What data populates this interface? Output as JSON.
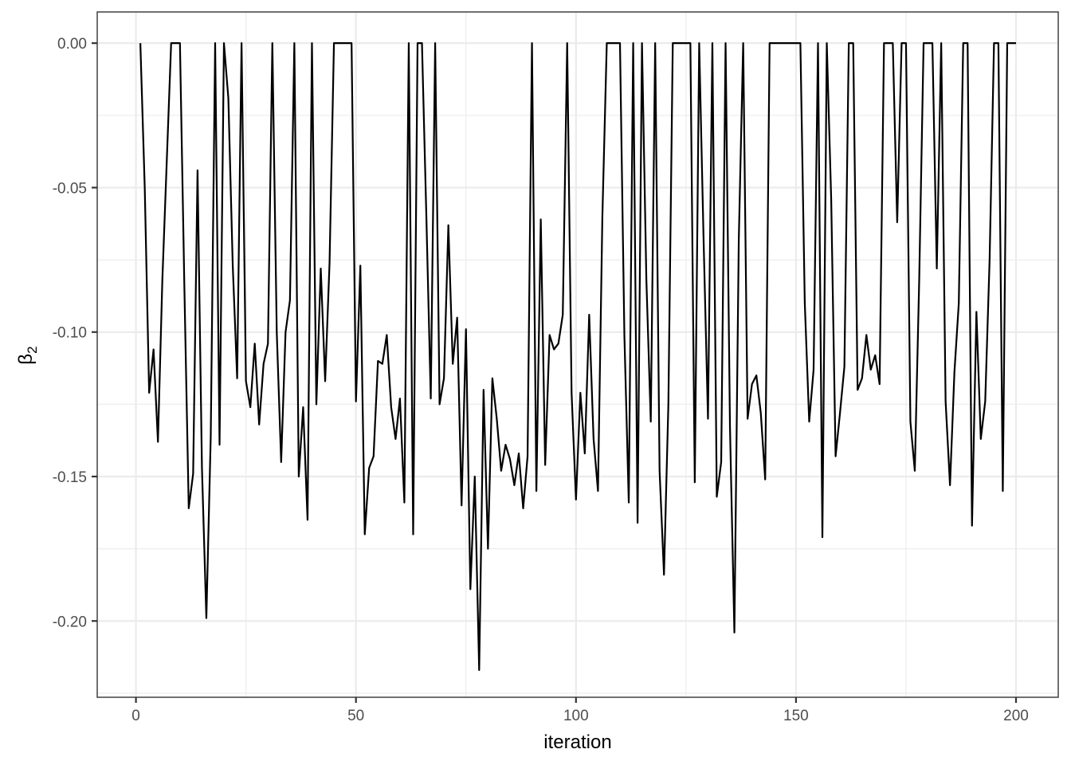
{
  "chart_data": {
    "type": "line",
    "title": "",
    "xlabel": "iteration",
    "ylabel": "β2",
    "ylabel_main": "β",
    "ylabel_sub": "2",
    "xlim": [
      -8.8,
      209.6
    ],
    "ylim": [
      -0.2264,
      0.0108
    ],
    "grid": true,
    "legend": "none",
    "x_ticks": [
      0,
      50,
      100,
      150,
      200
    ],
    "x_tick_labels": [
      "0",
      "50",
      "100",
      "150",
      "200"
    ],
    "x_minor": [
      25,
      75,
      125,
      175
    ],
    "y_ticks": [
      0.0,
      -0.05,
      -0.1,
      -0.15,
      -0.2
    ],
    "y_tick_labels": [
      "0.00",
      "-0.05",
      "-0.10",
      "-0.15",
      "-0.20"
    ],
    "y_minor": [
      -0.025,
      -0.075,
      -0.125,
      -0.175,
      -0.225
    ],
    "x_start": 1,
    "series": [
      {
        "name": "beta_2",
        "color": "#000000",
        "values": [
          0,
          -0.05,
          -0.121,
          -0.106,
          -0.138,
          -0.082,
          -0.041,
          0,
          0,
          0,
          -0.084,
          -0.161,
          -0.149,
          -0.044,
          -0.147,
          -0.199,
          -0.136,
          0,
          -0.139,
          0,
          -0.019,
          -0.077,
          -0.116,
          0,
          -0.117,
          -0.126,
          -0.104,
          -0.132,
          -0.111,
          -0.104,
          0,
          -0.1,
          -0.145,
          -0.1,
          -0.089,
          0,
          -0.15,
          -0.126,
          -0.165,
          0,
          -0.125,
          -0.078,
          -0.117,
          -0.076,
          0,
          0,
          0,
          0,
          0,
          -0.124,
          -0.077,
          -0.17,
          -0.147,
          -0.143,
          -0.11,
          -0.111,
          -0.101,
          -0.126,
          -0.137,
          -0.123,
          -0.159,
          0,
          -0.17,
          0,
          0,
          -0.06,
          -0.123,
          0,
          -0.125,
          -0.116,
          -0.063,
          -0.111,
          -0.095,
          -0.16,
          -0.099,
          -0.189,
          -0.15,
          -0.217,
          -0.12,
          -0.175,
          -0.116,
          -0.13,
          -0.148,
          -0.139,
          -0.144,
          -0.153,
          -0.142,
          -0.161,
          -0.143,
          0,
          -0.155,
          -0.061,
          -0.146,
          -0.101,
          -0.106,
          -0.104,
          -0.094,
          0,
          -0.121,
          -0.158,
          -0.121,
          -0.142,
          -0.094,
          -0.137,
          -0.155,
          -0.06,
          0,
          0,
          0,
          0,
          -0.101,
          -0.159,
          0,
          -0.166,
          0,
          -0.082,
          -0.131,
          0,
          -0.148,
          -0.184,
          -0.125,
          0,
          0,
          0,
          0,
          0,
          -0.152,
          0,
          -0.068,
          -0.13,
          0,
          -0.157,
          -0.145,
          0,
          -0.133,
          -0.204,
          -0.068,
          0,
          -0.13,
          -0.118,
          -0.115,
          -0.128,
          -0.151,
          0,
          0,
          0,
          0,
          0,
          0,
          0,
          0,
          -0.09,
          -0.131,
          -0.113,
          0,
          -0.171,
          0,
          -0.054,
          -0.143,
          -0.128,
          -0.112,
          0,
          0,
          -0.12,
          -0.116,
          -0.101,
          -0.113,
          -0.108,
          -0.118,
          0,
          0,
          0,
          -0.062,
          0,
          0,
          -0.131,
          -0.148,
          -0.082,
          0,
          0,
          0,
          -0.078,
          0,
          -0.124,
          -0.153,
          -0.114,
          -0.09,
          0,
          0,
          -0.167,
          -0.093,
          -0.137,
          -0.124,
          -0.075,
          0,
          0,
          -0.155,
          0,
          0,
          0
        ]
      }
    ]
  },
  "colors": {
    "background": "#ffffff",
    "panel_border": "#333333",
    "grid": "#ebebeb",
    "line": "#000000",
    "tick_text": "#4d4d4d"
  }
}
